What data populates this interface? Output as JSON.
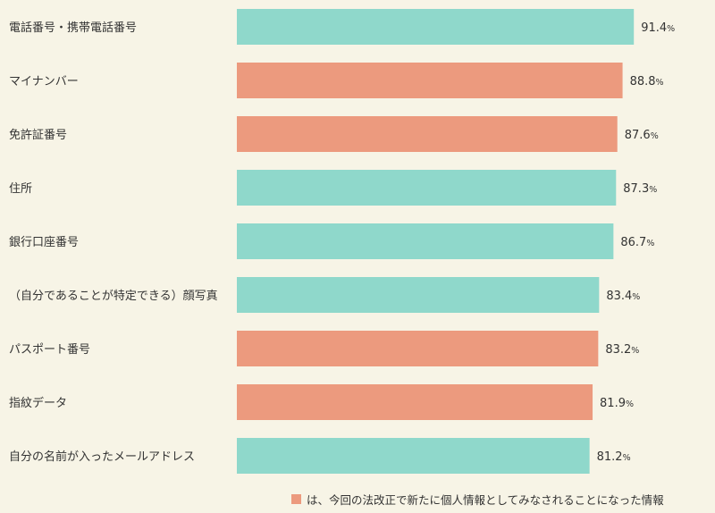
{
  "chart_data": {
    "type": "bar",
    "orientation": "horizontal",
    "categories": [
      "電話番号・携帯電話番号",
      "マイナンバー",
      "免許証番号",
      "住所",
      "銀行口座番号",
      "（自分であることが特定できる）顔写真",
      "パスポート番号",
      "指紋データ",
      "自分の名前が入ったメールアドレス"
    ],
    "values": [
      91.4,
      88.8,
      87.6,
      87.3,
      86.7,
      83.4,
      83.2,
      81.9,
      81.2
    ],
    "value_labels": [
      "91.4",
      "88.8",
      "87.6",
      "87.3",
      "86.7",
      "83.4",
      "83.2",
      "81.9",
      "81.2"
    ],
    "unit": "%",
    "highlighted": [
      false,
      true,
      true,
      false,
      false,
      false,
      true,
      true,
      false
    ],
    "colors": {
      "default": "#8fd8cb",
      "highlight": "#ec9a7e"
    },
    "xlim": [
      0,
      100
    ],
    "grid": false,
    "legend": {
      "position": "bottom-right",
      "text": "は、今回の法改正で新たに個人情報としてみなされることになった情報",
      "color": "#ec9a7e"
    }
  }
}
